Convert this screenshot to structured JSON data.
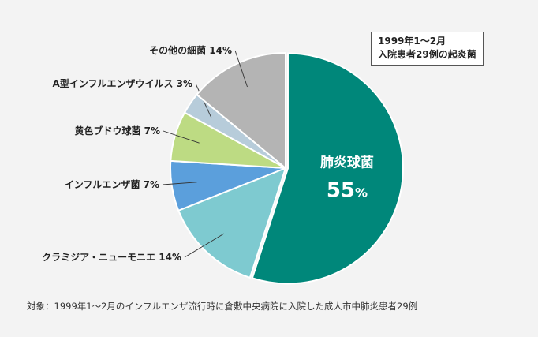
{
  "chart_data": {
    "type": "pie",
    "start_angle_deg": 0,
    "direction": "clockwise",
    "slices": [
      {
        "label": "肺炎球菌",
        "value": 55,
        "color": "#00877a",
        "label_style": "inside"
      },
      {
        "label": "クラミジア・ニューモニエ",
        "value": 14,
        "color": "#7ecad0",
        "label_style": "outside"
      },
      {
        "label": "インフルエンザ菌",
        "value": 7,
        "color": "#5b9fdc",
        "label_style": "outside"
      },
      {
        "label": "黄色ブドウ球菌",
        "value": 7,
        "color": "#bddb83",
        "label_style": "outside"
      },
      {
        "label": "A型インフルエンザウイルス",
        "value": 3,
        "color": "#b7ccda",
        "label_style": "outside"
      },
      {
        "label": "その他の細菌",
        "value": 14,
        "color": "#b4b4b4",
        "label_style": "outside"
      }
    ],
    "unit": "%"
  },
  "legend": {
    "line1": "1999年1～2月",
    "line2": "入院患者29例の起炎菌"
  },
  "footnote": "対象：1999年1～2月のインフルエンザ流行時に倉敷中央病院に入院した成人市中肺炎患者29例"
}
